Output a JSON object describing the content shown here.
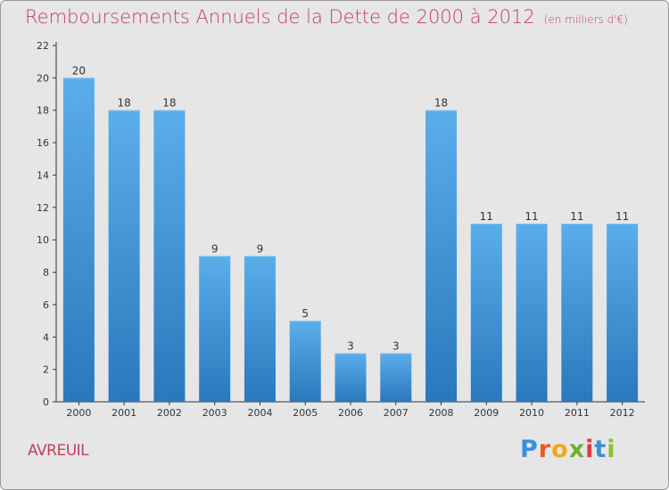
{
  "header": {
    "title": "Remboursements Annuels de la Dette de 2000 à 2012",
    "unit": "(en milliers d'€)"
  },
  "footer": {
    "commune": "AVREUIL",
    "logo_text": "Proxiti",
    "logo_colors": [
      "#3a8fd8",
      "#e85a2a",
      "#f2a71b",
      "#6ab42d",
      "#e23b3b",
      "#3a8fd8",
      "#8cbf2b"
    ]
  },
  "colors": {
    "bar_top": "#5aaeea",
    "bar_bottom": "#2a78bd",
    "title": "#c0405e",
    "axis": "#333333"
  },
  "chart_data": {
    "type": "bar",
    "categories": [
      "2000",
      "2001",
      "2002",
      "2003",
      "2004",
      "2005",
      "2006",
      "2007",
      "2008",
      "2009",
      "2010",
      "2011",
      "2012"
    ],
    "values": [
      20,
      18,
      18,
      9,
      9,
      5,
      3,
      3,
      18,
      11,
      11,
      11,
      11
    ],
    "data_labels": [
      "20",
      "18",
      "18",
      "9",
      "9",
      "5",
      "3",
      "3",
      "18",
      "11",
      "11",
      "11",
      "11"
    ],
    "ylim": [
      0,
      22
    ],
    "yticks": [
      0,
      2,
      4,
      6,
      8,
      10,
      12,
      14,
      16,
      18,
      20,
      22
    ],
    "grid": false,
    "legend": "none"
  }
}
